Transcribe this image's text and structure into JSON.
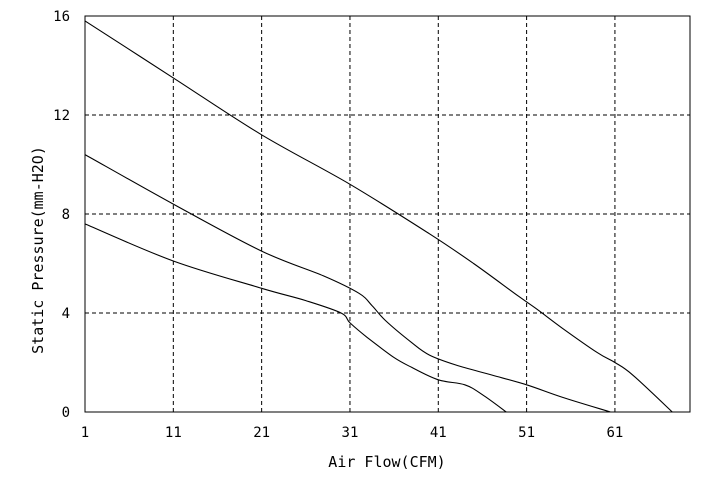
{
  "chart_data": {
    "type": "line",
    "title": "",
    "xlabel": "Air Flow(CFM)",
    "ylabel": "Static Pressure(mm-H2O)",
    "xlim": [
      1,
      69.5
    ],
    "ylim": [
      0,
      16
    ],
    "xticks": [
      1,
      11,
      21,
      31,
      41,
      51,
      61
    ],
    "yticks": [
      0,
      4,
      8,
      12,
      16
    ],
    "grid": true,
    "series": [
      {
        "x": [
          1,
          11,
          21,
          31,
          40,
          45,
          50,
          52,
          55,
          59,
          61,
          63,
          67.5
        ],
        "y": [
          15.8,
          13.5,
          11.2,
          9.2,
          7.2,
          6.0,
          4.7,
          4.2,
          3.4,
          2.4,
          2.0,
          1.5,
          0
        ]
      },
      {
        "x": [
          1,
          11,
          21,
          28,
          32,
          33.5,
          35,
          38,
          40,
          43,
          47,
          51,
          55,
          60.5
        ],
        "y": [
          10.4,
          8.4,
          6.5,
          5.5,
          4.8,
          4.3,
          3.7,
          2.8,
          2.3,
          1.9,
          1.5,
          1.1,
          0.6,
          0
        ]
      },
      {
        "x": [
          1,
          11,
          21,
          26,
          30,
          31,
          33,
          36,
          38,
          41,
          44,
          46,
          48.7
        ],
        "y": [
          7.6,
          6.1,
          5.0,
          4.5,
          4.0,
          3.6,
          3.0,
          2.2,
          1.8,
          1.3,
          1.1,
          0.7,
          0
        ]
      }
    ]
  }
}
